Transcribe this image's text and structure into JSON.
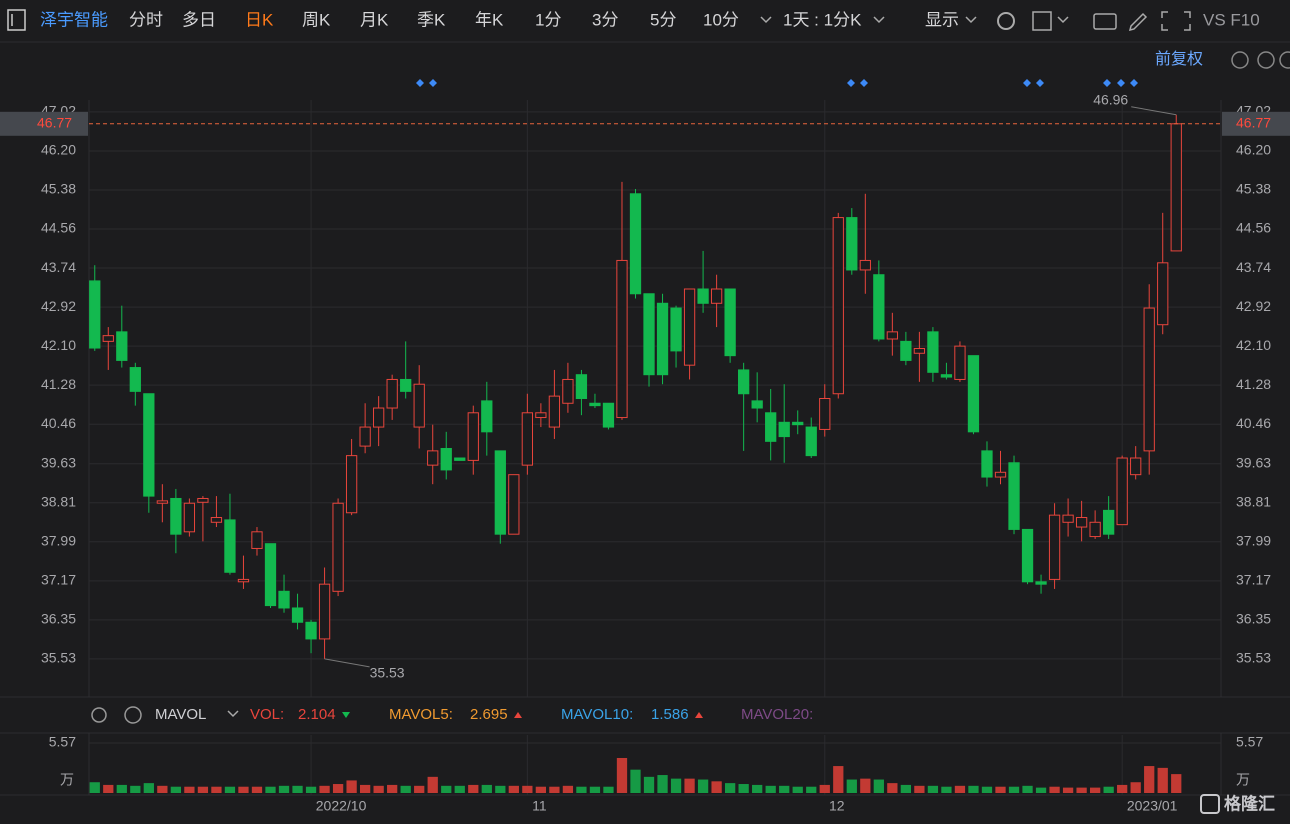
{
  "toolbar": {
    "stock": "泽宇智能",
    "tabs": [
      "分时",
      "多日",
      "日K",
      "周K",
      "月K",
      "季K",
      "年K",
      "1分",
      "3分",
      "5分",
      "10分"
    ],
    "period": "1天 : 1分K",
    "display": "显示",
    "vs": "VS F10",
    "adjust": "前复权"
  },
  "watermark": "格隆汇",
  "chart_data": [
    {
      "type": "candlestick",
      "categories": [
        null,
        null,
        null,
        null,
        null,
        null,
        null,
        null,
        null,
        null,
        null,
        null,
        null,
        null,
        null,
        null,
        "2022/10",
        null,
        null,
        null,
        null,
        null,
        null,
        null,
        null,
        null,
        null,
        null,
        null,
        null,
        null,
        null,
        "11",
        null,
        null,
        null,
        null,
        null,
        null,
        null,
        null,
        null,
        null,
        null,
        null,
        null,
        null,
        null,
        null,
        null,
        null,
        null,
        null,
        null,
        "12",
        null,
        null,
        null,
        null,
        null,
        null,
        null,
        null,
        null,
        null,
        null,
        null,
        null,
        null,
        null,
        null,
        null,
        null,
        null,
        null,
        null,
        "2023/01",
        null,
        null,
        null,
        null
      ],
      "open": [
        43.47,
        42.2,
        42.4,
        41.65,
        41.1,
        38.8,
        38.9,
        38.2,
        38.82,
        38.4,
        38.45,
        37.15,
        37.85,
        37.95,
        36.95,
        36.6,
        36.3,
        35.95,
        36.95,
        38.6,
        40.0,
        40.4,
        40.8,
        41.4,
        40.4,
        39.6,
        39.95,
        39.75,
        39.7,
        40.95,
        39.9,
        38.15,
        39.6,
        40.6,
        40.4,
        40.9,
        41.5,
        40.9,
        40.9,
        40.6,
        45.3,
        43.2,
        43.0,
        42.9,
        41.7,
        43.3,
        43.0,
        43.3,
        41.6,
        40.95,
        40.7,
        40.5,
        40.5,
        40.4,
        40.35,
        41.1,
        44.8,
        43.7,
        43.6,
        42.25,
        42.2,
        41.95,
        42.4,
        41.5,
        41.4,
        41.9,
        39.9,
        39.35,
        39.65,
        38.25,
        37.15,
        37.2,
        38.4,
        38.3,
        38.1,
        38.65,
        38.35,
        39.4,
        39.9,
        42.55,
        44.1
      ],
      "high": [
        43.8,
        42.5,
        42.95,
        41.75,
        41.1,
        39.2,
        39.1,
        38.9,
        38.95,
        38.95,
        39.0,
        37.7,
        38.3,
        37.95,
        37.3,
        36.9,
        36.35,
        37.45,
        38.9,
        40.15,
        40.9,
        41.05,
        41.5,
        42.2,
        41.7,
        40.45,
        40.3,
        39.75,
        40.85,
        41.35,
        39.9,
        39.4,
        41.1,
        40.9,
        41.6,
        41.75,
        41.6,
        41.1,
        40.9,
        45.55,
        45.4,
        43.2,
        43.2,
        42.95,
        43.3,
        44.1,
        43.6,
        43.3,
        41.75,
        41.55,
        41.2,
        41.3,
        40.75,
        40.6,
        41.3,
        44.9,
        45.0,
        45.3,
        43.9,
        42.8,
        42.4,
        42.4,
        42.5,
        41.75,
        42.2,
        41.9,
        40.1,
        39.9,
        39.8,
        38.25,
        37.3,
        38.8,
        38.9,
        38.85,
        38.65,
        38.95,
        39.8,
        40.0,
        43.4,
        44.9,
        46.96
      ],
      "low": [
        42.0,
        41.6,
        41.65,
        40.85,
        38.6,
        38.4,
        37.75,
        38.1,
        38.0,
        38.3,
        37.3,
        37.0,
        37.7,
        36.6,
        36.5,
        36.15,
        35.65,
        35.53,
        36.85,
        38.55,
        39.85,
        40.0,
        40.55,
        41.0,
        39.95,
        39.2,
        39.3,
        39.7,
        39.4,
        39.8,
        37.95,
        38.15,
        39.4,
        40.4,
        40.15,
        40.7,
        40.65,
        40.8,
        40.35,
        40.55,
        43.1,
        41.25,
        41.3,
        41.65,
        41.4,
        42.8,
        42.5,
        41.75,
        39.9,
        40.5,
        39.7,
        39.65,
        40.25,
        39.75,
        40.2,
        41.0,
        43.6,
        43.2,
        42.2,
        41.9,
        41.7,
        41.35,
        41.35,
        41.4,
        41.35,
        40.25,
        39.15,
        39.2,
        38.15,
        37.1,
        36.9,
        37.0,
        38.1,
        38.0,
        38.05,
        38.05,
        38.35,
        39.3,
        39.4,
        42.35,
        44.1
      ],
      "close": [
        42.06,
        42.32,
        41.8,
        41.15,
        38.95,
        38.85,
        38.15,
        38.8,
        38.9,
        38.5,
        37.35,
        37.2,
        38.2,
        36.65,
        36.6,
        36.3,
        35.95,
        37.1,
        38.8,
        39.8,
        40.4,
        40.8,
        41.4,
        41.15,
        41.3,
        39.9,
        39.5,
        39.7,
        40.7,
        40.3,
        38.15,
        39.4,
        40.7,
        40.7,
        41.05,
        41.4,
        41.0,
        40.85,
        40.4,
        43.9,
        43.2,
        41.5,
        41.5,
        42.0,
        43.3,
        43.0,
        43.3,
        41.9,
        41.1,
        40.8,
        40.1,
        40.2,
        40.45,
        39.8,
        41.0,
        44.8,
        43.7,
        43.9,
        42.25,
        42.4,
        41.8,
        42.05,
        41.55,
        41.45,
        42.1,
        40.3,
        39.35,
        39.45,
        38.25,
        37.15,
        37.1,
        38.55,
        38.55,
        38.5,
        38.4,
        38.15,
        39.75,
        39.75,
        42.9,
        43.85,
        46.77
      ],
      "ylim": [
        34.73,
        47.27
      ],
      "yticks": [
        47.02,
        {
          "value": 46.2,
          "label": "46.20"
        },
        45.38,
        44.56,
        43.74,
        42.92,
        {
          "value": 42.1,
          "label": "42.10"
        },
        41.28,
        40.46,
        39.63,
        38.81,
        37.99,
        37.17,
        36.35,
        35.53
      ],
      "up_color": "#e8453c",
      "down_color": "#13b94f",
      "grid": true
    },
    {
      "type": "bar",
      "indicator": "MAVOL",
      "values": [
        1.2,
        0.9,
        0.9,
        0.8,
        1.1,
        0.8,
        0.7,
        0.7,
        0.7,
        0.7,
        0.7,
        0.7,
        0.7,
        0.7,
        0.8,
        0.8,
        0.7,
        0.8,
        1.0,
        1.4,
        0.9,
        0.8,
        0.9,
        0.8,
        0.8,
        1.8,
        0.8,
        0.8,
        0.9,
        0.9,
        0.8,
        0.8,
        0.8,
        0.7,
        0.7,
        0.8,
        0.7,
        0.7,
        0.7,
        3.9,
        2.6,
        1.8,
        2.0,
        1.6,
        1.6,
        1.5,
        1.3,
        1.1,
        1.0,
        0.9,
        0.8,
        0.8,
        0.7,
        0.7,
        0.9,
        3.0,
        1.5,
        1.6,
        1.5,
        1.1,
        0.9,
        0.8,
        0.8,
        0.7,
        0.8,
        0.8,
        0.7,
        0.7,
        0.7,
        0.8,
        0.6,
        0.7,
        0.6,
        0.6,
        0.6,
        0.7,
        0.9,
        1.2,
        3.0,
        2.8,
        2.104
      ],
      "ylim": [
        0,
        5.57
      ],
      "yticks": [
        5.57
      ],
      "unit": "万",
      "vol_label": "VOL:",
      "mavol5_label": "MAVOL5:",
      "mavol5": 2.695,
      "mavol10_label": "MAVOL10:",
      "mavol10": 1.586,
      "mavol20_label": "MAVOL20:"
    }
  ]
}
